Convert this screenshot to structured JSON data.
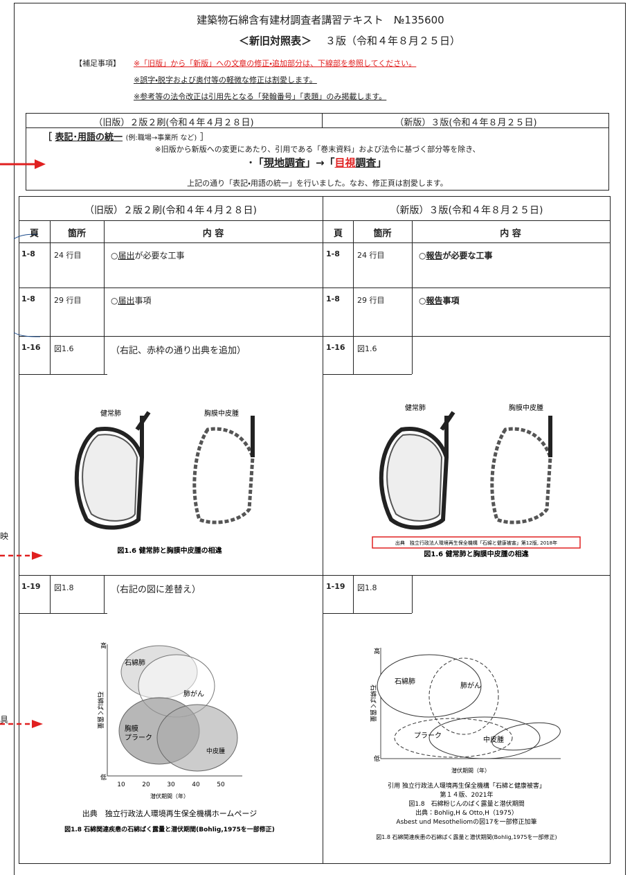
{
  "header": {
    "title": "建築物石綿含有建材調査者講習テキスト　№135600",
    "subtitle_bold": "＜新旧対照表＞",
    "subtitle_rest": "３版（令和４年８月２５日）"
  },
  "notes": {
    "label": "【補足事項】",
    "lines": [
      "※「旧版」から「新版」への文章の修正・追加部分は、下線部を参照してください。",
      "※誤字・脱字および奥付等の軽微な修正は割愛します。",
      "※参考等の法令改正は引用先となる「発翰番号」「表題」のみ掲載します。"
    ]
  },
  "summary": {
    "old_header": "（旧版）２版２刷(令和４年４月２８日)",
    "new_header": "（新版）３版(令和４年８月２５日)",
    "heading_open": "［",
    "heading": "表記･用語の統一",
    "heading_example": "(例:職場→事業所 など)",
    "heading_close": "］",
    "text1": "※旧版から新版への変更にあたり、引用である「巻末資料」および法令に基づく部分等を除き、",
    "change_prefix": "･「",
    "change_old": "現地調査",
    "change_mid": "」→「",
    "change_new_red": "目視",
    "change_new_rest": "調査",
    "change_suffix": "」",
    "text2": "上記の通り「表記・用語の統一」を行いました。なお、修正頁は割愛します。"
  },
  "table": {
    "old_header": "（旧版）２版２刷(令和４年４月２８日)",
    "new_header": "（新版）３版(令和４年８月２５日)",
    "columns": [
      "頁",
      "箇所",
      "内 容"
    ],
    "rows": [
      {
        "old": {
          "page": "1-8",
          "place": "24 行目",
          "mark": "○",
          "underlined": "届出",
          "rest": "が必要な工事"
        },
        "new": {
          "page": "1-8",
          "place": "24 行目",
          "mark": "○",
          "underlined": "報告",
          "rest": "が必要な工事"
        }
      },
      {
        "old": {
          "page": "1-8",
          "place": "29 行目",
          "mark": "○",
          "underlined": "届出",
          "rest": "事項"
        },
        "new": {
          "page": "1-8",
          "place": "29 行目",
          "mark": "○",
          "underlined": "報告",
          "rest": "事項"
        }
      },
      {
        "old": {
          "page": "1-16",
          "place": "図1.6",
          "note": "（右記、赤枠の通り出典を追加）"
        },
        "new": {
          "page": "1-16",
          "place": "図1.6"
        }
      },
      {
        "old": {
          "page": "1-19",
          "place": "図1.8",
          "note": "（右記の図に差替え）"
        },
        "new": {
          "page": "1-19",
          "place": "図1.8"
        }
      }
    ]
  },
  "figures": {
    "fig16_old": {
      "labels": [
        "健常肺",
        "胸膜中皮腫"
      ],
      "caption": "図1.6 健常肺と胸膜中皮腫の相違"
    },
    "fig16_new": {
      "labels": [
        "健常肺",
        "胸膜中皮腫"
      ],
      "source": "出典　独立行政法人環境再生保全機構「石綿と健康被害」第12版, 2018年",
      "caption": "図1.6 健常肺と胸膜中皮腫の相違"
    },
    "fig18_old": {
      "labels": [
        "石綿肺",
        "肺がん",
        "胸膜",
        "プラーク",
        "中皮腫"
      ],
      "y_high": "高",
      "y_label": "石綿ばく露量",
      "y_low": "低",
      "x_ticks": [
        "10",
        "20",
        "30",
        "40",
        "50"
      ],
      "x_label": "潜伏期間（年）",
      "source": "出典　独立行政法人環境再生保全機構ホームページ",
      "caption": "図1.8 石綿関連疾患の石綿ばく露量と潜伏期間(Bohlig,1975を一部修正)"
    },
    "fig18_new": {
      "labels": [
        "石綿肺",
        "肺がん",
        "プラーク",
        "中皮腫"
      ],
      "y_high": "高",
      "y_label": "石綿ばく露量",
      "y_low": "低",
      "x_label": "潜伏期間（年）",
      "citation": [
        "引用 独立行政法人環境再生保全機構「石綿と健康被害」",
        "第１４版、2021年",
        "図1.8　石綿粉じんのばく露量と潜伏期間",
        "出典：Bohlig,H & Otto,H（1975）",
        "Asbest und Mesotheliomの図17を一部修正加筆"
      ],
      "caption": "図1.8 石綿関連疾患の石綿ばく露量と潜伏期間(Bohlig,1975を一部修正)"
    }
  },
  "margin": {
    "fragment_1": "映",
    "fragment_2": "具"
  }
}
